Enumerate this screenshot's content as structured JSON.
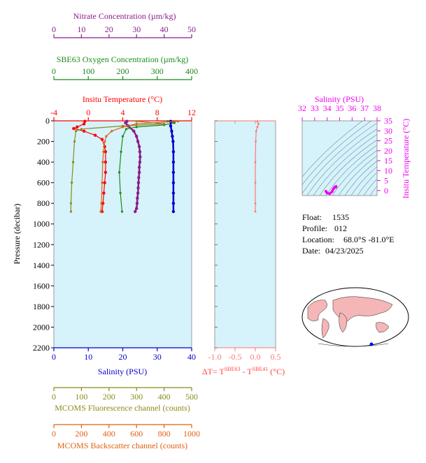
{
  "colors": {
    "nitrate": "#8b1a8b",
    "oxygen": "#1a8a1a",
    "temperature": "#ff0000",
    "salinity": "#0000cc",
    "fluorescence": "#8a8a1a",
    "backscatter": "#e06010",
    "salinity_ts": "#ee00ee",
    "delta_t": "#ff7777",
    "plot_bg": "#d6f2fa"
  },
  "info": {
    "float_label": "Float:",
    "float_value": "1535",
    "profile_label": "Profile:",
    "profile_value": "012",
    "location_label": "Location:",
    "location_value": "68.0°S  -81.0°E",
    "date_label": "Date:",
    "date_value": "04/23/2025"
  },
  "chart_data": [
    {
      "type": "line",
      "name": "main-profile",
      "ylabel": "Pressure (decibar)",
      "ylim": [
        0,
        2200
      ],
      "y_ticks": [
        0,
        200,
        400,
        600,
        800,
        1000,
        1200,
        1400,
        1600,
        1800,
        2000,
        2200
      ],
      "axes": {
        "nitrate": {
          "label": "Nitrate Concentration (µm/kg)",
          "lim": [
            0,
            50
          ],
          "ticks": [
            0,
            10,
            20,
            30,
            40,
            50
          ]
        },
        "oxygen": {
          "label": "SBE63 Oxygen Concentration (µm/kg)",
          "lim": [
            0,
            400
          ],
          "ticks": [
            0,
            100,
            200,
            300,
            400
          ]
        },
        "temperature": {
          "label": "Insitu Temperature (°C)",
          "lim": [
            -4,
            12
          ],
          "ticks": [
            -4,
            0,
            4,
            8,
            12
          ]
        },
        "salinity": {
          "label": "Salinity (PSU)",
          "lim": [
            0,
            40
          ],
          "ticks": [
            0,
            10,
            20,
            30,
            40
          ]
        },
        "fluorescence": {
          "label": "MCOMS Fluorescence channel (counts)",
          "lim": [
            0,
            500
          ],
          "ticks": [
            0,
            100,
            200,
            300,
            400,
            500
          ]
        },
        "backscatter": {
          "label": "MCOMS Backscatter channel (counts)",
          "lim": [
            0,
            1000
          ],
          "ticks": [
            0,
            200,
            400,
            600,
            800,
            1000
          ]
        }
      },
      "series": [
        {
          "name": "Nitrate",
          "axis": "nitrate",
          "values": [
            [
              26.5,
              5
            ],
            [
              26,
              20
            ],
            [
              27,
              50
            ],
            [
              29,
              100
            ],
            [
              30,
              150
            ],
            [
              30.5,
              200
            ],
            [
              31,
              250
            ],
            [
              31.2,
              300
            ],
            [
              31.3,
              350
            ],
            [
              31.2,
              400
            ],
            [
              31,
              450
            ],
            [
              31,
              500
            ],
            [
              30.8,
              550
            ],
            [
              30.7,
              600
            ],
            [
              30.6,
              650
            ],
            [
              30.5,
              700
            ],
            [
              30.3,
              750
            ],
            [
              30.2,
              800
            ],
            [
              30,
              850
            ],
            [
              29.5,
              880
            ]
          ]
        },
        {
          "name": "Oxygen",
          "axis": "oxygen",
          "values": [
            [
              330,
              5
            ],
            [
              350,
              20
            ],
            [
              320,
              40
            ],
            [
              240,
              60
            ],
            [
              210,
              80
            ],
            [
              200,
              150
            ],
            [
              195,
              300
            ],
            [
              190,
              500
            ],
            [
              193,
              700
            ],
            [
              198,
              880
            ]
          ]
        },
        {
          "name": "Temperature",
          "axis": "temperature",
          "values": [
            [
              -0.4,
              5
            ],
            [
              -0.5,
              30
            ],
            [
              -1.3,
              60
            ],
            [
              -1.7,
              75
            ],
            [
              -0.5,
              100
            ],
            [
              0.8,
              140
            ],
            [
              1.6,
              180
            ],
            [
              1.9,
              250
            ],
            [
              2.0,
              300
            ],
            [
              2.0,
              400
            ],
            [
              2.0,
              500
            ],
            [
              1.9,
              600
            ],
            [
              1.8,
              700
            ],
            [
              1.7,
              800
            ],
            [
              1.6,
              880
            ]
          ]
        },
        {
          "name": "Salinity",
          "axis": "salinity",
          "values": [
            [
              33.9,
              5
            ],
            [
              33.9,
              50
            ],
            [
              34.2,
              100
            ],
            [
              34.4,
              150
            ],
            [
              34.6,
              200
            ],
            [
              34.7,
              300
            ],
            [
              34.7,
              400
            ],
            [
              34.7,
              500
            ],
            [
              34.7,
              600
            ],
            [
              34.7,
              700
            ],
            [
              34.7,
              800
            ],
            [
              34.7,
              880
            ]
          ]
        },
        {
          "name": "Fluorescence",
          "axis": "fluorescence",
          "values": [
            [
              300,
              5
            ],
            [
              400,
              30
            ],
            [
              250,
              50
            ],
            [
              100,
              80
            ],
            [
              80,
              100
            ],
            [
              75,
              200
            ],
            [
              70,
              400
            ],
            [
              65,
              600
            ],
            [
              62,
              800
            ],
            [
              62,
              880
            ]
          ]
        },
        {
          "name": "Backscatter",
          "axis": "backscatter",
          "values": [
            [
              900,
              5
            ],
            [
              600,
              30
            ],
            [
              500,
              60
            ],
            [
              420,
              100
            ],
            [
              380,
              150
            ],
            [
              370,
              200
            ],
            [
              360,
              300
            ],
            [
              355,
              400
            ],
            [
              350,
              600
            ],
            [
              345,
              800
            ],
            [
              340,
              880
            ]
          ]
        }
      ]
    },
    {
      "type": "line",
      "name": "delta-t",
      "xlabel": "ΔT= T SBE63 - T SBE41 (°C)",
      "xlabel_main": "ΔT= T",
      "xlabel_sup1": "SBE63",
      "xlabel_mid": " - T",
      "xlabel_sup2": "SBE41",
      "xlabel_unit": " (°C)",
      "xlim": [
        -1.0,
        0.5
      ],
      "x_ticks": [
        "-1.0",
        "-0.5",
        "0.0",
        "0.5"
      ],
      "values": [
        [
          0.05,
          5
        ],
        [
          0.08,
          30
        ],
        [
          0.05,
          60
        ],
        [
          0.02,
          100
        ],
        [
          0.01,
          200
        ],
        [
          0.0,
          400
        ],
        [
          0.0,
          600
        ],
        [
          0.0,
          800
        ],
        [
          0.0,
          880
        ]
      ]
    },
    {
      "type": "scatter",
      "name": "ts-diagram",
      "xlabel": "Salinity (PSU)",
      "ylabel": "Insitu Temperature (°C)",
      "xlim": [
        32,
        38
      ],
      "ylim": [
        -2.5,
        35
      ],
      "x_ticks": [
        32,
        33,
        34,
        35,
        36,
        37,
        38
      ],
      "y_ticks": [
        0,
        5,
        10,
        15,
        20,
        25,
        30,
        35
      ],
      "values": [
        [
          33.9,
          -0.4
        ],
        [
          34.0,
          -1.2
        ],
        [
          34.2,
          -1.6
        ],
        [
          34.4,
          -0.5
        ],
        [
          34.5,
          0.8
        ],
        [
          34.6,
          1.6
        ],
        [
          34.7,
          2.0
        ],
        [
          34.7,
          1.9
        ],
        [
          34.7,
          1.7
        ]
      ]
    }
  ]
}
